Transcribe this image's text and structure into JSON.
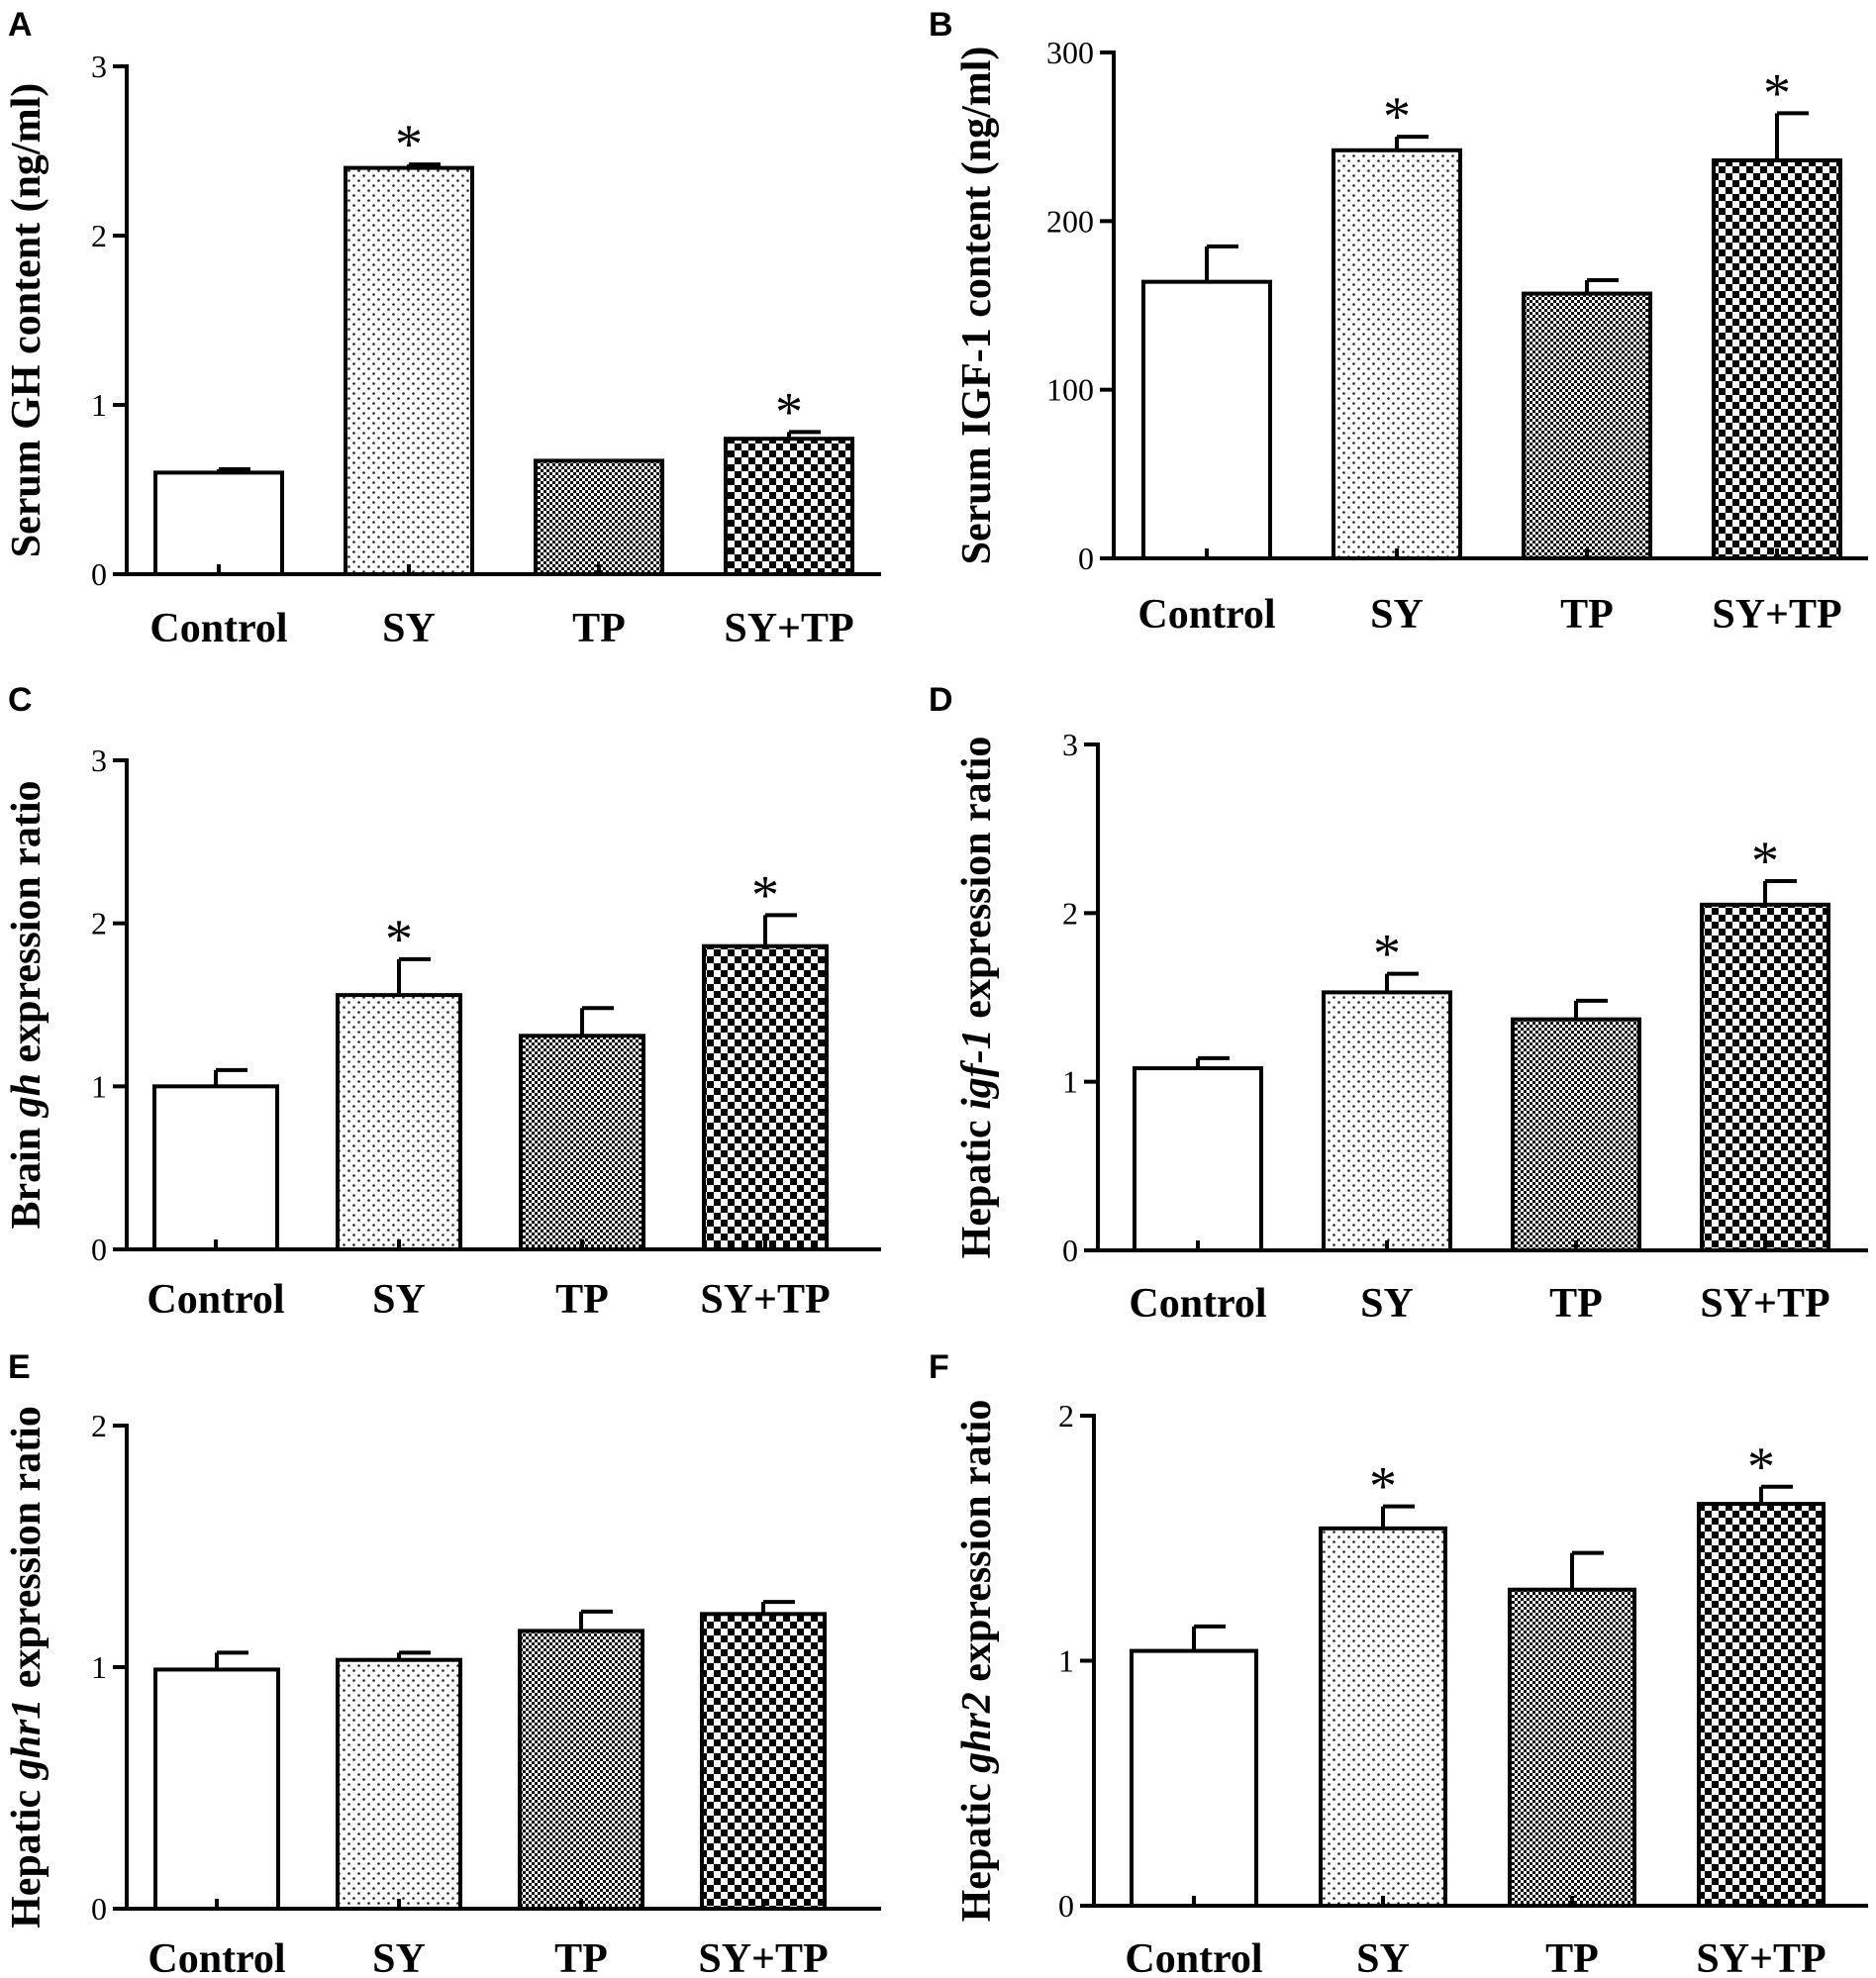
{
  "figure": {
    "patterns": [
      "solid-white",
      "dots",
      "fine-check",
      "coarse-check"
    ],
    "colors": {
      "ink": "#000000",
      "paper": "#ffffff"
    }
  },
  "chart_data": [
    {
      "panel": "A",
      "type": "bar",
      "ylabel": [
        {
          "text": "Serum GH content (ng/ml)",
          "italic": false
        }
      ],
      "categories": [
        "Control",
        "SY",
        "TP",
        "SY+TP"
      ],
      "values": [
        0.6,
        2.4,
        0.67,
        0.8
      ],
      "errors": [
        0.02,
        0.02,
        0.0,
        0.04
      ],
      "significant": [
        false,
        true,
        false,
        true
      ],
      "sig_marker": "*",
      "ylim": [
        0,
        3
      ],
      "yticks": [
        "0",
        "1",
        "2",
        "3"
      ]
    },
    {
      "panel": "B",
      "type": "bar",
      "ylabel": [
        {
          "text": "Serum IGF-1 content (ng/ml)",
          "italic": false
        }
      ],
      "categories": [
        "Control",
        "SY",
        "TP",
        "SY+TP"
      ],
      "values": [
        164,
        242,
        157,
        236
      ],
      "errors": [
        21,
        8,
        8,
        28
      ],
      "significant": [
        false,
        true,
        false,
        true
      ],
      "sig_marker": "*",
      "ylim": [
        0,
        300
      ],
      "yticks": [
        "0",
        "100",
        "200",
        "300"
      ]
    },
    {
      "panel": "C",
      "type": "bar",
      "ylabel": [
        {
          "text": "Brain ",
          "italic": false
        },
        {
          "text": "gh",
          "italic": true
        },
        {
          "text": " expression ratio",
          "italic": false
        }
      ],
      "categories": [
        "Control",
        "SY",
        "TP",
        "SY+TP"
      ],
      "values": [
        1.0,
        1.56,
        1.31,
        1.86
      ],
      "errors": [
        0.1,
        0.22,
        0.17,
        0.19
      ],
      "significant": [
        false,
        true,
        false,
        true
      ],
      "sig_marker": "*",
      "ylim": [
        0,
        3
      ],
      "yticks": [
        "0",
        "1",
        "2",
        "3"
      ]
    },
    {
      "panel": "D",
      "type": "bar",
      "ylabel": [
        {
          "text": "Hepatic ",
          "italic": false
        },
        {
          "text": "igf-1",
          "italic": true
        },
        {
          "text": " expression ratio",
          "italic": false
        }
      ],
      "categories": [
        "Control",
        "SY",
        "TP",
        "SY+TP"
      ],
      "values": [
        1.08,
        1.53,
        1.37,
        2.05
      ],
      "errors": [
        0.06,
        0.11,
        0.11,
        0.14
      ],
      "significant": [
        false,
        true,
        false,
        true
      ],
      "sig_marker": "*",
      "ylim": [
        0,
        3
      ],
      "yticks": [
        "0",
        "1",
        "2",
        "3"
      ]
    },
    {
      "panel": "E",
      "type": "bar",
      "ylabel": [
        {
          "text": "Hepatic ",
          "italic": false
        },
        {
          "text": "ghr1",
          "italic": true
        },
        {
          "text": " expression ratio",
          "italic": false
        }
      ],
      "categories": [
        "Control",
        "SY",
        "TP",
        "SY+TP"
      ],
      "values": [
        0.99,
        1.03,
        1.15,
        1.22
      ],
      "errors": [
        0.07,
        0.03,
        0.08,
        0.05
      ],
      "significant": [
        false,
        false,
        false,
        false
      ],
      "sig_marker": "*",
      "ylim": [
        0,
        2
      ],
      "yticks": [
        "0",
        "1",
        "2"
      ]
    },
    {
      "panel": "F",
      "type": "bar",
      "ylabel": [
        {
          "text": "Hepatic ",
          "italic": false
        },
        {
          "text": "ghr2",
          "italic": true
        },
        {
          "text": " expression ratio",
          "italic": false
        }
      ],
      "categories": [
        "Control",
        "SY",
        "TP",
        "SY+TP"
      ],
      "values": [
        1.04,
        1.54,
        1.29,
        1.64
      ],
      "errors": [
        0.1,
        0.09,
        0.15,
        0.07
      ],
      "significant": [
        false,
        true,
        false,
        true
      ],
      "sig_marker": "*",
      "ylim": [
        0,
        2
      ],
      "yticks": [
        "0",
        "1",
        "2"
      ]
    }
  ]
}
